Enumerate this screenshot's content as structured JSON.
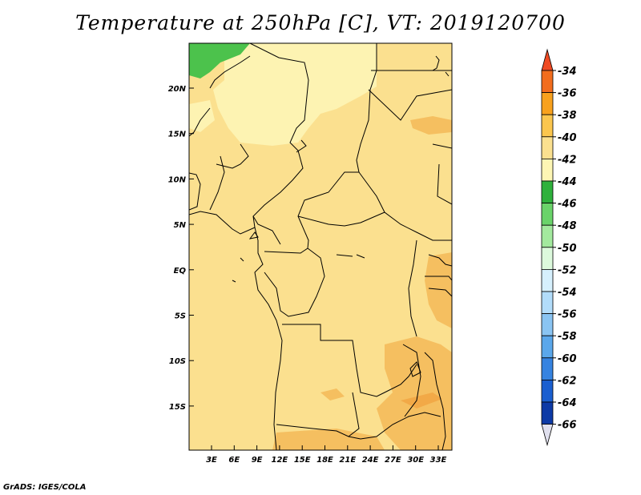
{
  "title": "Temperature at 250hPa [C], VT: 2019120700",
  "credit": "GrADS: IGES/COLA",
  "map": {
    "lat_labels": [
      "20N",
      "15N",
      "10N",
      "5N",
      "EQ",
      "5S",
      "10S",
      "15S"
    ],
    "lon_labels": [
      "3E",
      "6E",
      "9E",
      "12E",
      "15E",
      "18E",
      "21E",
      "24E",
      "27E",
      "30E",
      "33E"
    ],
    "colors": {
      "base": "#fbe08f",
      "light": "#fdf3b2",
      "orange": "#f5bf60",
      "green": "#4cc24c",
      "border": "#000000"
    }
  },
  "colorbar": {
    "labels": [
      "-34",
      "-36",
      "-38",
      "-40",
      "-42",
      "-44",
      "-46",
      "-48",
      "-50",
      "-52",
      "-54",
      "-56",
      "-58",
      "-60",
      "-62",
      "-64",
      "-66"
    ],
    "top_color": "#ef4a23",
    "bottom_color": "#e0e0ee",
    "colors": [
      "#f26d1d",
      "#f8a11d",
      "#fbc64e",
      "#fbe08f",
      "#fdf6b4",
      "#2fb13c",
      "#6ad36a",
      "#a3e99e",
      "#dcf9dc",
      "#d6f0fd",
      "#b2dcfa",
      "#8ac4f2",
      "#5ba7ea",
      "#3683e0",
      "#1a5fd0",
      "#0d3aa6"
    ]
  }
}
